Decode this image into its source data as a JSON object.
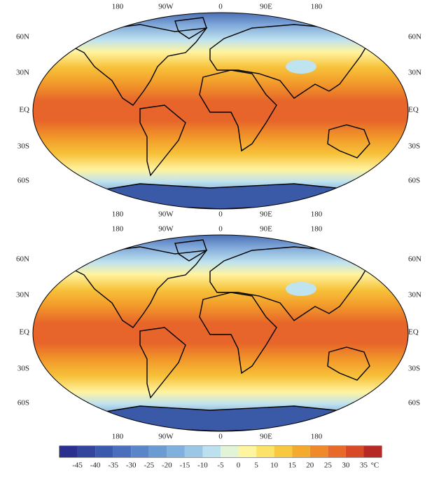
{
  "maps": [
    {
      "top_labels": [
        "180",
        "90W",
        "0",
        "90E",
        "180"
      ],
      "bottom_labels": [
        "180",
        "90W",
        "0",
        "90E",
        "180"
      ],
      "left_labels": [
        "60N",
        "30N",
        "EQ",
        "30S",
        "60S"
      ],
      "right_labels": [
        "60N",
        "30N",
        "EQ",
        "30S",
        "60S"
      ]
    },
    {
      "top_labels": [
        "180",
        "90W",
        "0",
        "90E",
        "180"
      ],
      "bottom_labels": [
        "180",
        "90W",
        "0",
        "90E",
        "180"
      ],
      "left_labels": [
        "60N",
        "30N",
        "EQ",
        "30S",
        "60S"
      ],
      "right_labels": [
        "60N",
        "30N",
        "EQ",
        "30S",
        "60S"
      ]
    }
  ],
  "colorbar": {
    "ticks": [
      -45,
      -40,
      -35,
      -30,
      -25,
      -20,
      -15,
      -10,
      -5,
      0,
      5,
      10,
      15,
      20,
      25,
      30,
      35
    ],
    "unit": "°C",
    "colors": [
      "#2b2f8f",
      "#33469e",
      "#3b5aae",
      "#4a6fbd",
      "#5a86c9",
      "#6b9bd3",
      "#80b0dd",
      "#9cc6e6",
      "#bde0ef",
      "#e3f3d8",
      "#fdf5a0",
      "#fbe36a",
      "#f8c840",
      "#f4a92f",
      "#ef8a2a",
      "#e86a28",
      "#d84a27",
      "#b52a24"
    ]
  }
}
